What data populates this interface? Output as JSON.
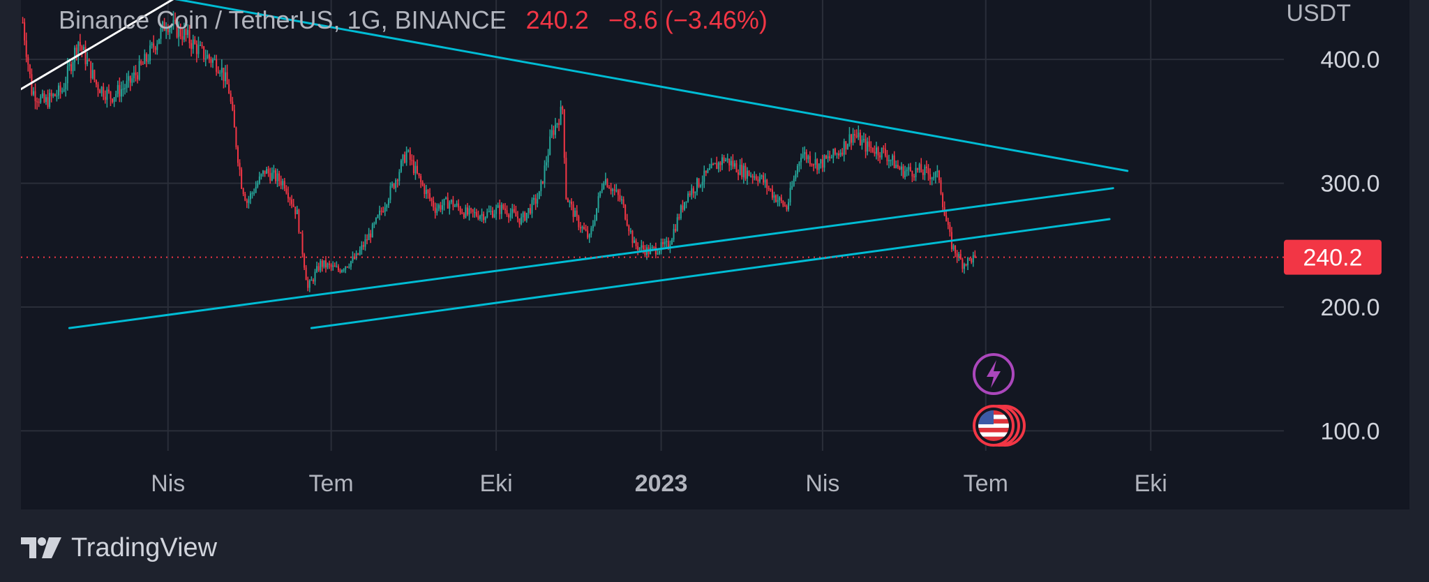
{
  "legend": {
    "symbol": "Binance Coin / TetherUS, 1G, BINANCE",
    "price": "240.2",
    "change": "−8.6 (−3.46%)"
  },
  "axis": {
    "currency": "USDT",
    "price_badge": "240.2"
  },
  "footer": {
    "brand": "TradingView"
  },
  "colors": {
    "up": "#26a69a",
    "down": "#f23645",
    "trendline": "#00bcd4",
    "white_line": "#ffffff",
    "badge": "#f23645",
    "event_lightning": "#ab47bc"
  },
  "icons": [
    "lightning-event-icon",
    "us-flag-event-icon"
  ],
  "chart_data": {
    "type": "candlestick",
    "title": "Binance Coin / TetherUS, 1G, BINANCE",
    "y_ticks": [
      "100.0",
      "200.0",
      "300.0",
      "400.0"
    ],
    "ylim": [
      76,
      448
    ],
    "x_ticks": [
      "Nis",
      "Tem",
      "Eki",
      "2023",
      "Nis",
      "Tem",
      "Eki"
    ],
    "x_tick_dates": [
      "2022-04-01",
      "2022-07-01",
      "2022-10-01",
      "2023-01-01",
      "2023-04-01",
      "2023-07-01",
      "2023-10-01"
    ],
    "xlim": [
      "2022-01-09",
      "2023-12-15"
    ],
    "last_price": 240.2,
    "price_series_approx": [
      [
        "2022-01-10",
        430
      ],
      [
        "2022-01-15",
        375
      ],
      [
        "2022-01-22",
        365
      ],
      [
        "2022-02-01",
        375
      ],
      [
        "2022-02-10",
        415
      ],
      [
        "2022-02-20",
        380
      ],
      [
        "2022-02-28",
        370
      ],
      [
        "2022-03-10",
        380
      ],
      [
        "2022-03-20",
        400
      ],
      [
        "2022-03-31",
        430
      ],
      [
        "2022-04-10",
        420
      ],
      [
        "2022-04-20",
        405
      ],
      [
        "2022-04-30",
        395
      ],
      [
        "2022-05-05",
        375
      ],
      [
        "2022-05-12",
        300
      ],
      [
        "2022-05-15",
        285
      ],
      [
        "2022-05-25",
        310
      ],
      [
        "2022-06-05",
        300
      ],
      [
        "2022-06-12",
        275
      ],
      [
        "2022-06-18",
        215
      ],
      [
        "2022-06-25",
        235
      ],
      [
        "2022-07-05",
        230
      ],
      [
        "2022-07-15",
        240
      ],
      [
        "2022-07-25",
        265
      ],
      [
        "2022-08-05",
        300
      ],
      [
        "2022-08-12",
        325
      ],
      [
        "2022-08-20",
        300
      ],
      [
        "2022-08-28",
        280
      ],
      [
        "2022-09-05",
        285
      ],
      [
        "2022-09-15",
        275
      ],
      [
        "2022-09-25",
        275
      ],
      [
        "2022-10-05",
        280
      ],
      [
        "2022-10-15",
        270
      ],
      [
        "2022-10-25",
        290
      ],
      [
        "2022-11-01",
        340
      ],
      [
        "2022-11-07",
        360
      ],
      [
        "2022-11-09",
        290
      ],
      [
        "2022-11-15",
        270
      ],
      [
        "2022-11-22",
        255
      ],
      [
        "2022-11-30",
        305
      ],
      [
        "2022-12-10",
        285
      ],
      [
        "2022-12-17",
        250
      ],
      [
        "2022-12-25",
        245
      ],
      [
        "2023-01-05",
        250
      ],
      [
        "2023-01-15",
        290
      ],
      [
        "2023-01-25",
        305
      ],
      [
        "2023-02-05",
        320
      ],
      [
        "2023-02-15",
        310
      ],
      [
        "2023-02-25",
        305
      ],
      [
        "2023-03-05",
        290
      ],
      [
        "2023-03-12",
        280
      ],
      [
        "2023-03-20",
        325
      ],
      [
        "2023-03-30",
        315
      ],
      [
        "2023-04-10",
        325
      ],
      [
        "2023-04-18",
        340
      ],
      [
        "2023-04-25",
        330
      ],
      [
        "2023-05-05",
        325
      ],
      [
        "2023-05-15",
        310
      ],
      [
        "2023-05-25",
        310
      ],
      [
        "2023-06-05",
        305
      ],
      [
        "2023-06-08",
        275
      ],
      [
        "2023-06-12",
        250
      ],
      [
        "2023-06-18",
        235
      ],
      [
        "2023-06-25",
        240.2
      ]
    ],
    "trendlines": [
      {
        "type": "descending_resistance",
        "from": [
          "2022-02-02",
          465
        ],
        "to": [
          "2023-09-18",
          310
        ]
      },
      {
        "type": "ascending_support_1",
        "from": [
          "2022-02-05",
          183
        ],
        "to": [
          "2023-09-10",
          296
        ]
      },
      {
        "type": "ascending_support_2",
        "from": [
          "2022-06-20",
          183
        ],
        "to": [
          "2023-09-08",
          271
        ]
      },
      {
        "type": "white_line",
        "from": [
          "2022-01-09",
          376
        ],
        "to": [
          "2022-05-07",
          477
        ]
      }
    ]
  }
}
